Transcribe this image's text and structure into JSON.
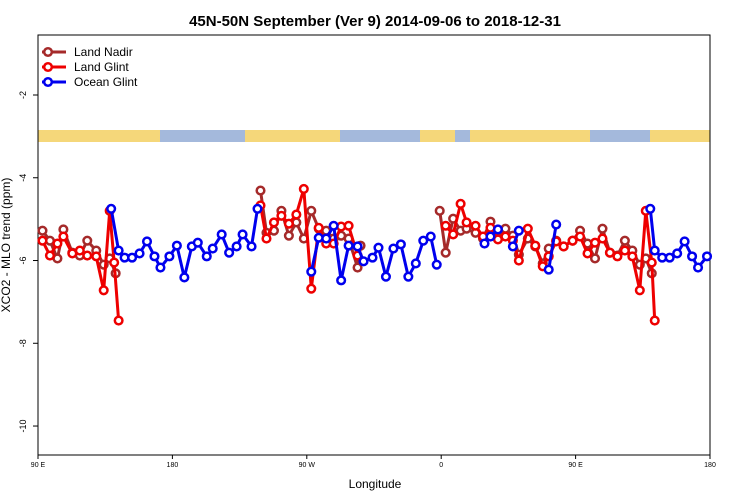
{
  "chart_data": {
    "type": "line",
    "title": "45N-50N September (Ver 9)   2014-09-06 to 2018-12-31",
    "x_label": "Longitude",
    "y_label": "XCO2 - MLO trend (ppm)",
    "xlim": [
      90,
      540
    ],
    "xticks": [
      {
        "value": 90,
        "label": "90 E"
      },
      180,
      {
        "value": 270,
        "label": "90 W"
      },
      {
        "value": 360,
        "label": "0"
      },
      {
        "value": 450,
        "label": "90 E"
      },
      {
        "value": 540,
        "label": "180"
      }
    ],
    "ylim": [
      -10.7,
      -0.55
    ],
    "yticks": [
      -10,
      -8,
      -6,
      -4,
      -2
    ],
    "legend": "upper left",
    "series": [
      {
        "name": "Land Nadir",
        "color": "#a52a2a",
        "x": [
          93,
          98,
          103,
          107,
          113,
          118,
          123,
          129,
          134,
          138,
          142,
          null,
          239,
          243,
          248,
          253,
          258,
          263,
          268,
          273,
          278,
          283,
          288,
          293,
          298,
          304,
          306,
          null,
          359,
          363,
          368,
          373,
          377,
          383,
          388,
          393,
          398,
          403,
          408,
          412,
          418,
          423,
          428,
          432,
          437,
          442,
          448,
          453,
          458,
          463,
          468,
          473,
          478,
          483,
          488,
          493,
          497,
          501
        ],
        "values": [
          -5.28,
          -5.52,
          -5.95,
          -5.25,
          -5.81,
          -5.88,
          -5.52,
          -5.76,
          -6.1,
          -5.95,
          -6.31,
          null,
          -4.31,
          -5.33,
          -5.28,
          -4.8,
          -5.4,
          -5.08,
          -5.47,
          -4.8,
          -5.23,
          -5.28,
          -5.47,
          -5.4,
          -5.47,
          -6.17,
          -5.64,
          null,
          -4.8,
          -5.81,
          -4.99,
          -5.28,
          -5.23,
          -5.33,
          -5.47,
          -5.06,
          -5.47,
          -5.23,
          -5.4,
          -5.86,
          -5.47,
          -5.66,
          -6.07,
          -5.71,
          -5.52,
          -5.66,
          -5.52,
          -5.28,
          -5.59,
          -5.95,
          -5.23,
          -5.81,
          -5.88,
          -5.52,
          -5.76,
          -6.1,
          -5.95,
          -6.31
        ]
      },
      {
        "name": "Land Glint",
        "color": "#ee0000",
        "x": [
          93,
          98,
          103,
          107,
          113,
          118,
          123,
          129,
          134,
          138,
          141,
          144,
          null,
          239,
          243,
          248,
          253,
          258,
          263,
          268,
          273,
          278,
          283,
          288,
          293,
          298,
          304,
          null,
          363,
          368,
          373,
          377,
          383,
          388,
          393,
          398,
          403,
          408,
          412,
          418,
          423,
          428,
          432,
          437,
          442,
          448,
          453,
          458,
          463,
          468,
          473,
          478,
          483,
          488,
          493,
          497,
          501,
          503
        ],
        "values": [
          -5.52,
          -5.88,
          -5.59,
          -5.42,
          -5.83,
          -5.76,
          -5.88,
          -5.9,
          -6.72,
          -4.8,
          -6.05,
          -7.45,
          null,
          -4.67,
          -5.47,
          -5.08,
          -4.92,
          -5.11,
          -4.89,
          -4.27,
          -6.68,
          -5.21,
          -5.59,
          -5.59,
          -5.18,
          -5.16,
          -5.88,
          null,
          -5.16,
          -5.37,
          -4.63,
          -5.08,
          -5.16,
          -5.42,
          -5.21,
          -5.49,
          -5.42,
          -5.52,
          -6.0,
          -5.23,
          -5.64,
          -6.14,
          -5.9,
          -5.54,
          -5.66,
          -5.52,
          -5.42,
          -5.83,
          -5.57,
          -5.47,
          -5.81,
          -5.9,
          -5.76,
          -5.9,
          -6.72,
          -4.8,
          -6.05,
          -7.45
        ]
      },
      {
        "name": "Ocean Glint",
        "color": "#0000ee",
        "x": [
          139,
          144,
          148,
          153,
          158,
          163,
          168,
          172,
          178,
          183,
          188,
          193,
          197,
          203,
          207,
          213,
          218,
          223,
          227,
          233,
          237,
          null,
          273,
          278,
          283,
          288,
          293,
          298,
          304,
          308,
          314,
          318,
          323,
          328,
          333,
          338,
          343,
          348,
          353,
          357,
          null,
          389,
          393,
          398,
          null,
          408,
          412,
          null,
          432,
          437,
          null,
          500,
          503,
          508,
          513,
          518,
          523,
          528,
          532,
          538
        ],
        "values": [
          -4.75,
          -5.76,
          -5.93,
          -5.93,
          -5.83,
          -5.54,
          -5.9,
          -6.17,
          -5.9,
          -5.64,
          -6.41,
          -5.66,
          -5.57,
          -5.9,
          -5.71,
          -5.37,
          -5.81,
          -5.66,
          -5.37,
          -5.66,
          -4.75,
          null,
          -6.27,
          -5.45,
          -5.47,
          -5.16,
          -6.48,
          -5.64,
          -5.66,
          -6.02,
          -5.93,
          -5.69,
          -6.39,
          -5.71,
          -5.61,
          -6.39,
          -6.07,
          -5.52,
          -5.42,
          -6.1,
          null,
          -5.59,
          -5.42,
          -5.25,
          null,
          -5.66,
          -5.28,
          null,
          -6.22,
          -5.13,
          null,
          -4.75,
          -5.76,
          -5.93,
          -5.93,
          -5.83,
          -5.54,
          -5.9,
          -6.17,
          -5.9
        ]
      }
    ]
  }
}
